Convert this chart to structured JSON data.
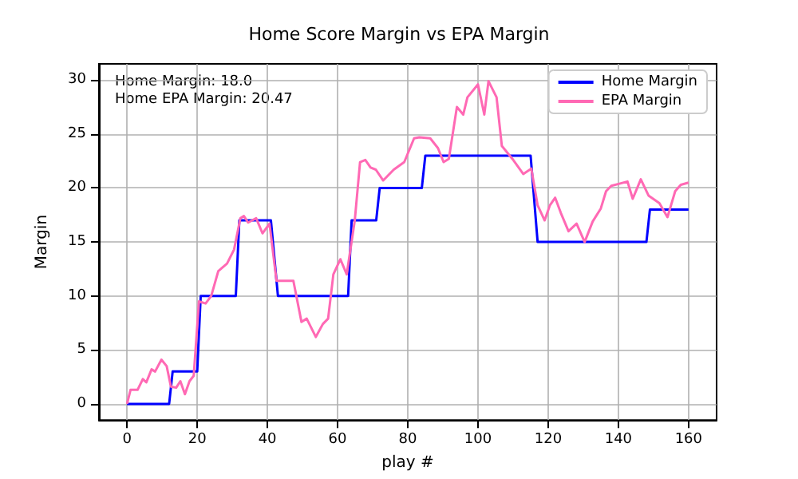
{
  "chart_data": {
    "type": "line",
    "title": "Home Score Margin vs EPA Margin",
    "xlabel": "play #",
    "ylabel": "Margin",
    "annotations": [
      "Home Margin: 18.0\nHome EPA Margin: 20.47"
    ],
    "series": [
      {
        "name": "Home Margin",
        "color": "#0000ff",
        "x": [
          0,
          12,
          13,
          20,
          21,
          31,
          32,
          41,
          43,
          63,
          64,
          71,
          72,
          84,
          85,
          115,
          117,
          148,
          149,
          160
        ],
        "values": [
          0,
          0,
          3,
          3,
          10,
          10,
          17,
          17,
          10,
          10,
          17,
          17,
          20,
          20,
          23,
          23,
          15,
          15,
          18,
          18
        ]
      },
      {
        "name": "EPA Margin",
        "color": "#ff69b4",
        "x": [
          0,
          1,
          3,
          4.5,
          5.5,
          7,
          8,
          9.8,
          11.3,
          12.5,
          14,
          15.2,
          16.5,
          17.8,
          19,
          20.5,
          22.4,
          24,
          26,
          28.5,
          30.5,
          32.3,
          33.3,
          34.5,
          36.8,
          38.6,
          40.6,
          42.6,
          47.4,
          49.7,
          51.2,
          53.8,
          55.8,
          57.3,
          58.8,
          60.8,
          62.6,
          64.9,
          66.4,
          67.9,
          69.4,
          70.9,
          73,
          76,
          79,
          81.8,
          83.3,
          86.4,
          88.6,
          90.2,
          91.7,
          94,
          95.8,
          97,
          100,
          101.8,
          103,
          105.3,
          106.8,
          109.8,
          112.9,
          115.2,
          117,
          119,
          120.5,
          122,
          123.6,
          125.8,
          128.1,
          130.4,
          132.7,
          135,
          136.5,
          138,
          140.3,
          142.6,
          144.1,
          146.4,
          148.6,
          151.7,
          154,
          156.2,
          157.8,
          160
        ],
        "values": [
          0,
          1.3,
          1.3,
          2.3,
          2,
          3.2,
          3,
          4.1,
          3.5,
          1.6,
          1.5,
          2.1,
          0.9,
          2.1,
          2.6,
          9.5,
          9.3,
          10,
          12.3,
          13,
          14.3,
          17.2,
          17.4,
          16.8,
          17.2,
          15.8,
          16.7,
          11.4,
          11.4,
          7.6,
          7.9,
          6.2,
          7.4,
          7.9,
          12,
          13.4,
          12,
          17,
          22.4,
          22.6,
          21.9,
          21.7,
          20.7,
          21.7,
          22.4,
          24.6,
          24.7,
          24.6,
          23.7,
          22.4,
          22.7,
          27.5,
          26.8,
          28.4,
          29.6,
          26.8,
          29.9,
          28.4,
          23.9,
          22.7,
          21.3,
          21.8,
          18.4,
          17,
          18.4,
          19.1,
          17.7,
          16,
          16.7,
          15,
          16.9,
          18.1,
          19.7,
          20.2,
          20.4,
          20.6,
          19,
          20.8,
          19.3,
          18.6,
          17.3,
          19.7,
          20.3,
          20.5
        ]
      }
    ],
    "xlim": [
      -8,
      168
    ],
    "xticks": [
      0,
      20,
      40,
      60,
      80,
      100,
      120,
      140,
      160
    ],
    "ylim": [
      -1.5,
      31.5
    ],
    "yticks": [
      0,
      5,
      10,
      15,
      20,
      25,
      30
    ],
    "grid": true,
    "legend": "top right",
    "marker": "none",
    "line_style": "solid"
  }
}
